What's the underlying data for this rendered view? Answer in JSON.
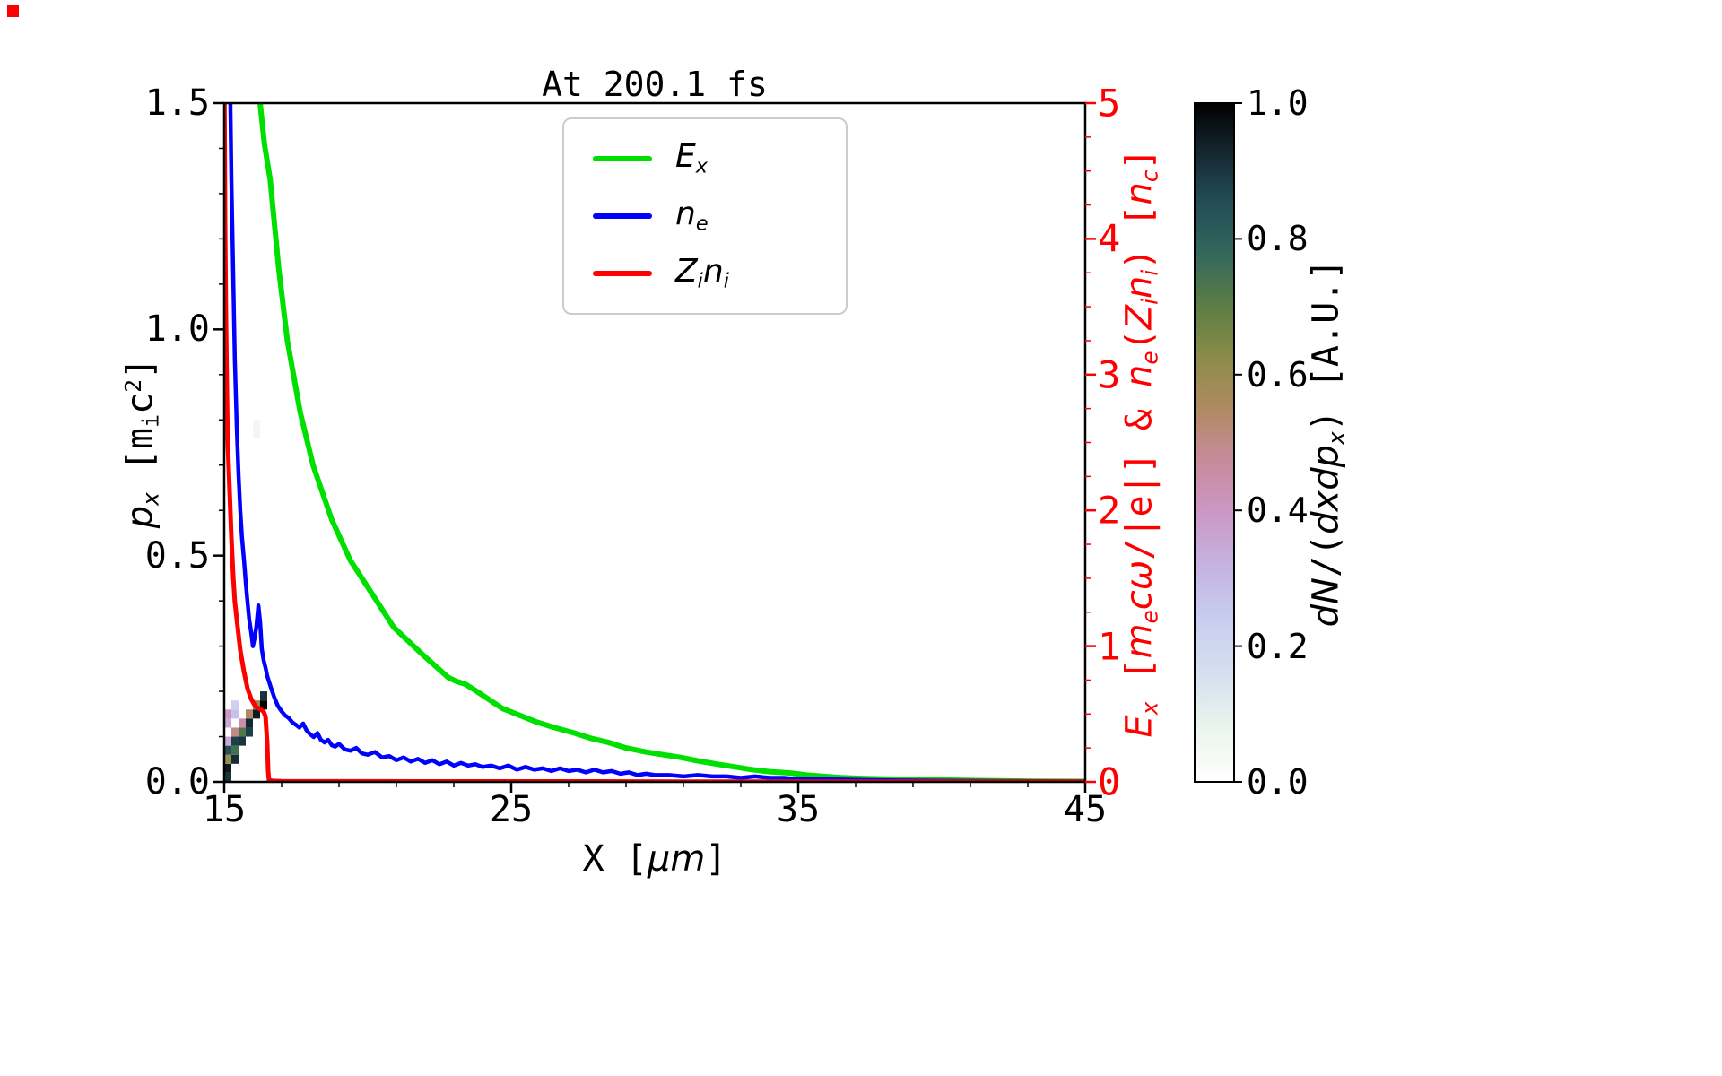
{
  "corner_marker": {
    "color": "#ff0000"
  },
  "chart_data": {
    "type": "line",
    "title": "At 200.1 fs",
    "x_range": [
      15,
      45
    ],
    "y_left_range": [
      0,
      1.5
    ],
    "y_right_range": [
      0,
      5
    ],
    "x_ticks": {
      "values": [
        15,
        25,
        35,
        45
      ],
      "labels": [
        "15",
        "25",
        "35",
        "45"
      ],
      "minor_step": 2
    },
    "y_left_ticks": {
      "values": [
        0,
        0.5,
        1,
        1.5
      ],
      "labels": [
        "0.0",
        "0.5",
        "1.0",
        "1.5"
      ],
      "minor_step": 0.1
    },
    "y_right_ticks": {
      "values": [
        0,
        1,
        2,
        3,
        4,
        5
      ],
      "labels": [
        "0",
        "1",
        "2",
        "3",
        "4",
        "5"
      ],
      "minor_step": 0.25,
      "color": "#ff0000"
    },
    "xlabel": [
      {
        "t": "X ["
      },
      {
        "t": "μm",
        "i": true
      },
      {
        "t": "]"
      }
    ],
    "ylabel_left": [
      {
        "t": "p",
        "i": true
      },
      {
        "t": "x",
        "i": true,
        "sub": true
      },
      {
        "t": " ["
      },
      {
        "t": "m"
      },
      {
        "t": "i",
        "sub": true
      },
      {
        "t": "c"
      },
      {
        "t": "2",
        "sup": true
      },
      {
        "t": "]"
      }
    ],
    "ylabel_right": [
      {
        "t": "E",
        "i": true
      },
      {
        "t": "x",
        "i": true,
        "sub": true
      },
      {
        "t": " ["
      },
      {
        "t": "m",
        "i": true
      },
      {
        "t": "e",
        "i": true,
        "sub": true
      },
      {
        "t": "c",
        "i": true
      },
      {
        "t": "ω",
        "i": true
      },
      {
        "t": "/|e|] & "
      },
      {
        "t": "n",
        "i": true
      },
      {
        "t": "e",
        "i": true,
        "sub": true
      },
      {
        "t": "("
      },
      {
        "t": "Z",
        "i": true
      },
      {
        "t": "i",
        "i": true,
        "sub": true
      },
      {
        "t": "n",
        "i": true
      },
      {
        "t": "i",
        "i": true,
        "sub": true
      },
      {
        "t": ") ["
      },
      {
        "t": "n",
        "i": true
      },
      {
        "t": "c",
        "i": true,
        "sub": true
      },
      {
        "t": "]"
      }
    ],
    "ylabel_right_color": "#ff0000",
    "legend": [
      {
        "id": "ex",
        "color": "#00e000",
        "label": [
          {
            "t": "E",
            "i": true
          },
          {
            "t": "x",
            "i": true,
            "sub": true
          }
        ]
      },
      {
        "id": "ne",
        "color": "#0000ff",
        "label": [
          {
            "t": "n",
            "i": true
          },
          {
            "t": "e",
            "i": true,
            "sub": true
          }
        ]
      },
      {
        "id": "zini",
        "color": "#ff0000",
        "label": [
          {
            "t": "Z",
            "i": true
          },
          {
            "t": "i",
            "i": true,
            "sub": true
          },
          {
            "t": "n",
            "i": true
          },
          {
            "t": "i",
            "i": true,
            "sub": true
          }
        ]
      }
    ],
    "series": [
      {
        "id": "ex",
        "name": "E_x",
        "color": "#00e000",
        "axis": "right",
        "lw": 6,
        "x": [
          15.95,
          16.1,
          16.25,
          16.4,
          16.6,
          16.9,
          17.2,
          17.65,
          18.1,
          18.75,
          19.4,
          20.2,
          20.9,
          21.9,
          22.8,
          23.1,
          23.4,
          23.7,
          24.2,
          24.7,
          25.3,
          25.9,
          26.5,
          27.2,
          27.8,
          28.4,
          29.0,
          29.7,
          30.3,
          30.9,
          31.5,
          32.2,
          32.8,
          33.4,
          34.0,
          34.7,
          35.3,
          35.9,
          36.5,
          37.2,
          38.4,
          39.3,
          40.3,
          41.2,
          42.2,
          43.2,
          44.1,
          45.0
        ],
        "y": [
          5.9,
          5.45,
          5.0,
          4.7,
          4.44,
          3.78,
          3.25,
          2.72,
          2.33,
          1.93,
          1.63,
          1.37,
          1.14,
          0.94,
          0.77,
          0.74,
          0.72,
          0.68,
          0.61,
          0.54,
          0.49,
          0.44,
          0.4,
          0.36,
          0.32,
          0.29,
          0.25,
          0.22,
          0.2,
          0.18,
          0.155,
          0.13,
          0.11,
          0.09,
          0.075,
          0.066,
          0.05,
          0.04,
          0.032,
          0.026,
          0.02,
          0.016,
          0.013,
          0.01,
          0.007,
          0.005,
          0.004,
          0.003
        ]
      },
      {
        "id": "ne",
        "name": "n_e",
        "color": "#0000ff",
        "axis": "right",
        "lw": 4.5,
        "x": [
          15.19,
          15.25,
          15.31,
          15.37,
          15.44,
          15.5,
          15.56,
          15.62,
          15.69,
          15.75,
          15.81,
          15.87,
          15.94,
          16.0,
          16.06,
          16.12,
          16.19,
          16.25,
          16.31,
          16.37,
          16.44,
          16.5,
          16.62,
          16.75,
          16.87,
          17.0,
          17.12,
          17.25,
          17.37,
          17.5,
          17.62,
          17.75,
          17.87,
          18.0,
          18.12,
          18.25,
          18.37,
          18.5,
          18.62,
          18.75,
          18.87,
          19.0,
          19.2,
          19.4,
          19.6,
          19.8,
          20.0,
          20.25,
          20.5,
          20.75,
          21.0,
          21.25,
          21.5,
          21.75,
          22.0,
          22.25,
          22.5,
          22.75,
          23.0,
          23.25,
          23.5,
          23.75,
          24.0,
          24.3,
          24.6,
          24.9,
          25.2,
          25.5,
          25.8,
          26.1,
          26.4,
          26.7,
          27.0,
          27.3,
          27.6,
          27.9,
          28.2,
          28.5,
          28.8,
          29.1,
          29.4,
          29.7,
          30.0,
          30.5,
          31.0,
          31.5,
          32.0,
          32.5,
          33.0,
          33.5,
          34.0,
          34.5,
          35.0,
          36.0,
          37.0,
          38.0,
          39.0,
          40.0,
          41.0,
          42.0,
          43.0,
          44.0,
          45.0
        ],
        "y": [
          5.4,
          4.44,
          3.78,
          3.12,
          2.59,
          2.26,
          2.0,
          1.8,
          1.63,
          1.47,
          1.33,
          1.2,
          1.1,
          1.0,
          1.06,
          1.14,
          1.3,
          1.18,
          0.98,
          0.9,
          0.84,
          0.78,
          0.7,
          0.62,
          0.56,
          0.52,
          0.49,
          0.47,
          0.44,
          0.42,
          0.4,
          0.43,
          0.38,
          0.35,
          0.33,
          0.36,
          0.31,
          0.29,
          0.31,
          0.27,
          0.26,
          0.28,
          0.24,
          0.23,
          0.25,
          0.21,
          0.2,
          0.22,
          0.18,
          0.19,
          0.16,
          0.18,
          0.15,
          0.17,
          0.14,
          0.16,
          0.13,
          0.15,
          0.12,
          0.14,
          0.12,
          0.13,
          0.11,
          0.12,
          0.1,
          0.12,
          0.09,
          0.11,
          0.09,
          0.1,
          0.08,
          0.1,
          0.08,
          0.09,
          0.07,
          0.09,
          0.07,
          0.08,
          0.06,
          0.07,
          0.05,
          0.06,
          0.05,
          0.05,
          0.04,
          0.05,
          0.04,
          0.04,
          0.03,
          0.04,
          0.03,
          0.03,
          0.02,
          0.02,
          0.015,
          0.012,
          0.01,
          0.008,
          0.007,
          0.006,
          0.005,
          0.004,
          0.003
        ]
      },
      {
        "id": "zini",
        "name": "Z_i n_i",
        "color": "#ff0000",
        "axis": "right",
        "lw": 5,
        "x": [
          15.0,
          15.03,
          15.06,
          15.09,
          15.12,
          15.19,
          15.25,
          15.31,
          15.37,
          15.47,
          15.56,
          15.69,
          15.81,
          15.94,
          16.09,
          16.25,
          16.37,
          16.44,
          16.5,
          16.53,
          16.56,
          16.7,
          17.0,
          18.0,
          20.0,
          22.0,
          25.0,
          28.0,
          31.0,
          35.0,
          40.0,
          45.0
        ],
        "y": [
          5.4,
          4.11,
          3.45,
          2.92,
          2.52,
          2.13,
          1.8,
          1.53,
          1.33,
          1.14,
          0.97,
          0.81,
          0.69,
          0.61,
          0.555,
          0.535,
          0.52,
          0.48,
          0.28,
          0.08,
          0.013,
          0.007,
          0.005,
          0.004,
          0.004,
          0.003,
          0.003,
          0.003,
          0.002,
          0.002,
          0.002,
          0.002
        ]
      }
    ],
    "heatmap": {
      "axis": "left",
      "value_label": "dN/(dxdp_x) [A.U.]",
      "cell_size": {
        "dx": 0.25,
        "dp": 0.02
      },
      "cells": [
        [
          15.0,
          0.0,
          0.9
        ],
        [
          15.0,
          0.02,
          0.95
        ],
        [
          15.0,
          0.04,
          0.6
        ],
        [
          15.0,
          0.06,
          0.85
        ],
        [
          15.0,
          0.08,
          0.35
        ],
        [
          15.0,
          0.12,
          0.35
        ],
        [
          15.0,
          0.14,
          0.4
        ],
        [
          15.25,
          0.04,
          0.92
        ],
        [
          15.25,
          0.06,
          0.75
        ],
        [
          15.25,
          0.08,
          0.88
        ],
        [
          15.25,
          0.1,
          0.5
        ],
        [
          15.25,
          0.14,
          0.28
        ],
        [
          15.25,
          0.16,
          0.22
        ],
        [
          15.5,
          0.08,
          0.9
        ],
        [
          15.5,
          0.1,
          0.72
        ],
        [
          15.5,
          0.12,
          0.45
        ],
        [
          15.75,
          0.1,
          0.88
        ],
        [
          15.75,
          0.12,
          0.93
        ],
        [
          15.75,
          0.14,
          0.55
        ],
        [
          16.0,
          0.14,
          0.95
        ],
        [
          16.0,
          0.16,
          0.6
        ],
        [
          16.0,
          0.76,
          0.06
        ],
        [
          16.0,
          0.78,
          0.05
        ],
        [
          16.25,
          0.16,
          1.0
        ],
        [
          16.25,
          0.18,
          0.9
        ]
      ]
    },
    "colorbar": {
      "label": [
        {
          "t": "dN",
          "i": true
        },
        {
          "t": "/("
        },
        {
          "t": "dxdp",
          "i": true
        },
        {
          "t": "x",
          "i": true,
          "sub": true
        },
        {
          "t": ") [A.U.]"
        }
      ],
      "range": [
        0,
        1
      ],
      "ticks": {
        "values": [
          0,
          0.2,
          0.4,
          0.6,
          0.8,
          1.0
        ],
        "labels": [
          "0.0",
          "0.2",
          "0.4",
          "0.6",
          "0.8",
          "1.0"
        ]
      }
    },
    "colormap": [
      {
        "t": 0.0,
        "c": "#fefffe"
      },
      {
        "t": 0.08,
        "c": "#eaf4ec"
      },
      {
        "t": 0.16,
        "c": "#d4e0f0"
      },
      {
        "t": 0.24,
        "c": "#c9cdef"
      },
      {
        "t": 0.32,
        "c": "#c5b2e0"
      },
      {
        "t": 0.4,
        "c": "#cb97c4"
      },
      {
        "t": 0.47,
        "c": "#c88b9e"
      },
      {
        "t": 0.55,
        "c": "#b08a62"
      },
      {
        "t": 0.62,
        "c": "#8e8c4a"
      },
      {
        "t": 0.7,
        "c": "#5d7e44"
      },
      {
        "t": 0.78,
        "c": "#32675c"
      },
      {
        "t": 0.86,
        "c": "#234a55"
      },
      {
        "t": 0.93,
        "c": "#14262e"
      },
      {
        "t": 1.0,
        "c": "#000000"
      }
    ]
  }
}
